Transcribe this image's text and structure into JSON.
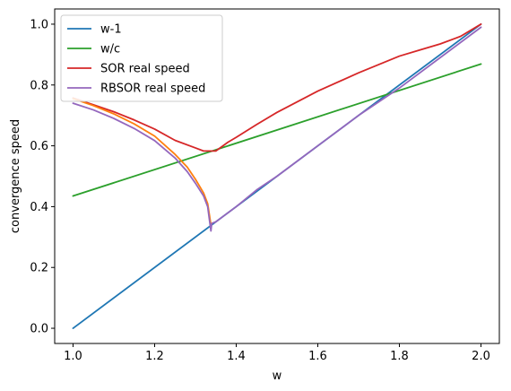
{
  "chart_data": {
    "type": "line",
    "xlabel": "w",
    "ylabel": "convergence speed",
    "xlim": [
      0.955,
      2.045
    ],
    "ylim": [
      -0.05,
      1.05
    ],
    "x_ticks": [
      "1.0",
      "1.2",
      "1.4",
      "1.6",
      "1.8",
      "2.0"
    ],
    "x_tick_values": [
      1.0,
      1.2,
      1.4,
      1.6,
      1.8,
      2.0
    ],
    "y_ticks": [
      "0.0",
      "0.2",
      "0.4",
      "0.6",
      "0.8",
      "1.0"
    ],
    "y_tick_values": [
      0.0,
      0.2,
      0.4,
      0.6,
      0.8,
      1.0
    ],
    "grid": false,
    "legend_position": "top-left",
    "series": [
      {
        "name": "w-1",
        "color": "#1f77b4",
        "x": [
          1.0,
          2.0
        ],
        "y": [
          0.0,
          1.0
        ]
      },
      {
        "name": "w/c",
        "color": "#2ca02c",
        "x": [
          1.0,
          2.0
        ],
        "y": [
          0.435,
          0.869
        ]
      },
      {
        "name": "SOR real speed",
        "color": "#d62728",
        "x": [
          1.0,
          1.05,
          1.1,
          1.15,
          1.2,
          1.25,
          1.3,
          1.32,
          1.35,
          1.38,
          1.4,
          1.45,
          1.5,
          1.6,
          1.7,
          1.8,
          1.85,
          1.9,
          1.95,
          2.0
        ],
        "y": [
          0.757,
          0.735,
          0.712,
          0.685,
          0.655,
          0.618,
          0.593,
          0.583,
          0.583,
          0.612,
          0.628,
          0.67,
          0.71,
          0.78,
          0.84,
          0.895,
          0.915,
          0.935,
          0.96,
          1.0
        ]
      },
      {
        "name": "",
        "color": "#ff7f0e",
        "x": [
          1.0,
          1.05,
          1.1,
          1.15,
          1.2,
          1.25,
          1.28,
          1.3,
          1.32,
          1.33,
          1.338
        ],
        "y": [
          0.755,
          0.732,
          0.705,
          0.672,
          0.632,
          0.572,
          0.53,
          0.49,
          0.445,
          0.41,
          0.34
        ]
      },
      {
        "name": "RBSOR real speed",
        "color": "#9467bd",
        "x": [
          1.0,
          1.05,
          1.1,
          1.15,
          1.2,
          1.25,
          1.28,
          1.3,
          1.32,
          1.33,
          1.338,
          1.34,
          1.35,
          1.37,
          1.4,
          1.45,
          1.5,
          1.6,
          1.7,
          1.8,
          1.9,
          2.0
        ],
        "y": [
          0.74,
          0.718,
          0.69,
          0.657,
          0.617,
          0.56,
          0.515,
          0.477,
          0.435,
          0.4,
          0.32,
          0.345,
          0.35,
          0.37,
          0.4,
          0.455,
          0.5,
          0.6,
          0.7,
          0.79,
          0.89,
          0.99
        ]
      }
    ]
  }
}
